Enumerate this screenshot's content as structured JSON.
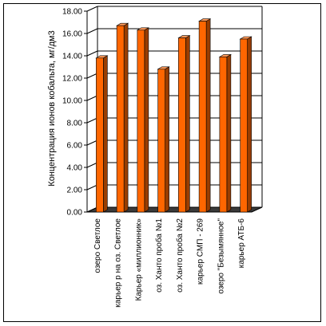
{
  "chart_data": {
    "type": "bar",
    "title": "",
    "xlabel": "",
    "ylabel": "Концентрация ионов кобальта, мг/дм3",
    "ylim": [
      0,
      18
    ],
    "ytick_step": 2,
    "ytick_labels": [
      "0.00",
      "2.00",
      "4.00",
      "6.00",
      "8.00",
      "10.00",
      "12.00",
      "14.00",
      "16.00",
      "18.00"
    ],
    "grid": true,
    "legend": "none",
    "categories": [
      "озеро Светлое",
      "карьер р на оз. Светлое",
      "Карьер «миллионник»",
      "оз. Ханто проба №1",
      "оз. Ханто проба №2",
      "карьер СМП - 269",
      "озеро \"Безымянное\"",
      "карьер АТБ-6"
    ],
    "values": [
      13.8,
      16.7,
      16.3,
      12.8,
      15.6,
      17.1,
      13.9,
      15.5
    ],
    "colors": {
      "bar_front": "#ff6600",
      "bar_side": "#993d00",
      "bar_top": "#ff9a5a",
      "floor": "#3a3a3a",
      "grid": "#000000",
      "axis": "#000000"
    }
  }
}
